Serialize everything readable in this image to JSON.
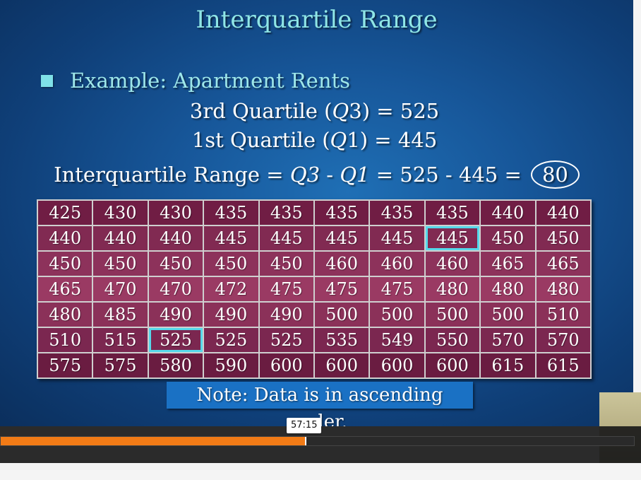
{
  "slide": {
    "title": "Interquartile Range",
    "bullet": "Example:  Apartment Rents",
    "q3": {
      "prefix": "3rd Quartile (",
      "var": "Q",
      "num": "3",
      "suffix": ") = 525"
    },
    "q1": {
      "prefix": "1st Quartile (",
      "var": "Q",
      "num": "1",
      "suffix": ") = 445"
    },
    "iqr": {
      "prefix": "Interquartile Range = ",
      "q3var": "Q3",
      "minus": " - ",
      "q1var": "Q1",
      "expr": " = 525 - 445 = ",
      "result": "80"
    },
    "table": {
      "rows": [
        [
          "425",
          "430",
          "430",
          "435",
          "435",
          "435",
          "435",
          "435",
          "440",
          "440"
        ],
        [
          "440",
          "440",
          "440",
          "445",
          "445",
          "445",
          "445",
          "445",
          "450",
          "450"
        ],
        [
          "450",
          "450",
          "450",
          "450",
          "450",
          "460",
          "460",
          "460",
          "465",
          "465"
        ],
        [
          "465",
          "470",
          "470",
          "472",
          "475",
          "475",
          "475",
          "480",
          "480",
          "480"
        ],
        [
          "480",
          "485",
          "490",
          "490",
          "490",
          "500",
          "500",
          "500",
          "500",
          "510"
        ],
        [
          "510",
          "515",
          "525",
          "525",
          "525",
          "535",
          "549",
          "550",
          "570",
          "570"
        ],
        [
          "575",
          "575",
          "580",
          "590",
          "600",
          "600",
          "600",
          "600",
          "615",
          "615"
        ]
      ],
      "highlighted_q1": "445",
      "highlighted_q3": "525"
    },
    "note": "Note: Data is in ascending order."
  },
  "player": {
    "timestamp": "57:15",
    "progress_fraction": 0.48
  },
  "colors": {
    "title": "#8fe6e6",
    "accent_orange": "#f27b16",
    "highlight_box": "#55d8ea"
  }
}
